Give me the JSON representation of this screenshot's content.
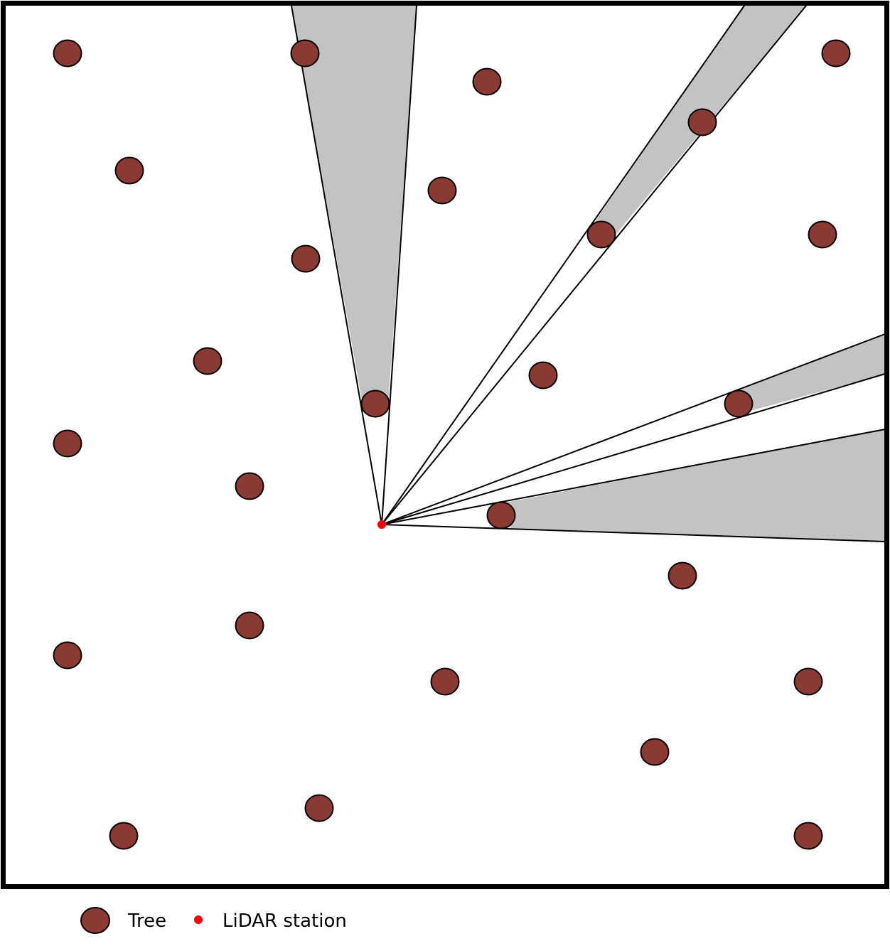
{
  "colors": {
    "tree_fill": "#8B3A33",
    "tree_stroke": "#000000",
    "station": "#FF0000",
    "shadow_fill": "#C3C3C3",
    "frame": "#000000",
    "background": "#FFFFFF"
  },
  "legend": {
    "tree_label": "Tree",
    "station_label": "LiDAR station",
    "tree_icon": "tree-circle-icon",
    "station_icon": "station-dot-icon"
  }
}
